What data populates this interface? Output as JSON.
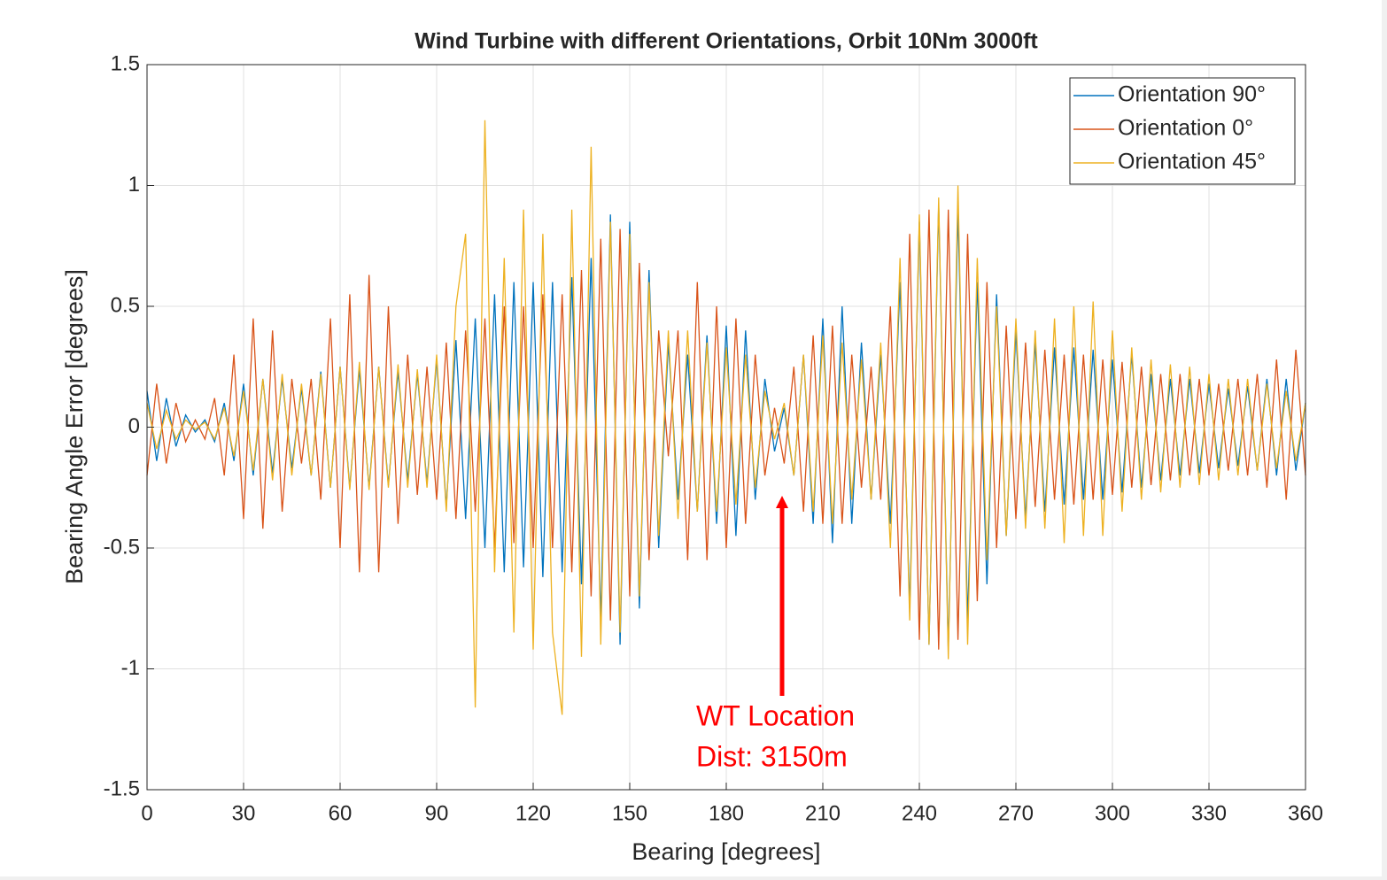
{
  "chart_data": {
    "type": "line",
    "title": "Wind Turbine with different Orientations, Orbit 10Nm 3000ft",
    "xlabel": "Bearing [degrees]",
    "ylabel": "Bearing Angle Error [degrees]",
    "x": [
      0,
      3,
      6,
      9,
      12,
      15,
      18,
      21,
      24,
      27,
      30,
      33,
      36,
      39,
      42,
      45,
      48,
      51,
      54,
      57,
      60,
      63,
      66,
      69,
      72,
      75,
      78,
      81,
      84,
      87,
      90,
      93,
      96,
      99,
      102,
      105,
      108,
      111,
      114,
      117,
      120,
      123,
      126,
      129,
      132,
      135,
      138,
      141,
      144,
      147,
      150,
      153,
      156,
      159,
      162,
      165,
      168,
      171,
      174,
      177,
      180,
      183,
      186,
      189,
      192,
      195,
      198,
      201,
      204,
      207,
      210,
      213,
      216,
      219,
      222,
      225,
      228,
      231,
      234,
      237,
      240,
      243,
      246,
      249,
      252,
      255,
      258,
      261,
      264,
      267,
      270,
      273,
      276,
      279,
      282,
      285,
      288,
      291,
      294,
      297,
      300,
      303,
      306,
      309,
      312,
      315,
      318,
      321,
      324,
      327,
      330,
      333,
      336,
      339,
      342,
      345,
      348,
      351,
      354,
      357,
      360
    ],
    "series": [
      {
        "name": "Orientation 90°",
        "color": "#0072bd",
        "values": [
          0.15,
          -0.14,
          0.12,
          -0.08,
          0.05,
          -0.02,
          0.03,
          -0.06,
          0.1,
          -0.14,
          0.18,
          -0.2,
          0.2,
          -0.19,
          0.2,
          -0.17,
          0.16,
          -0.2,
          0.23,
          -0.25,
          0.25,
          -0.25,
          0.24,
          -0.25,
          0.25,
          -0.24,
          0.23,
          -0.22,
          0.22,
          -0.23,
          0.28,
          -0.33,
          0.36,
          -0.38,
          0.45,
          -0.5,
          0.55,
          -0.6,
          0.6,
          -0.58,
          0.6,
          -0.62,
          0.6,
          -0.6,
          0.62,
          -0.65,
          0.7,
          -0.8,
          0.88,
          -0.9,
          0.85,
          -0.75,
          0.65,
          -0.5,
          0.35,
          -0.3,
          0.3,
          -0.35,
          0.38,
          -0.4,
          0.42,
          -0.45,
          0.4,
          -0.3,
          0.2,
          -0.1,
          0.08,
          -0.2,
          0.3,
          -0.4,
          0.45,
          -0.48,
          0.5,
          -0.4,
          0.35,
          -0.3,
          0.3,
          -0.4,
          0.6,
          -0.75,
          0.85,
          -0.9,
          0.92,
          -0.92,
          0.9,
          -0.8,
          0.6,
          -0.65,
          0.55,
          -0.45,
          0.4,
          -0.38,
          0.35,
          -0.35,
          0.33,
          -0.32,
          0.33,
          -0.3,
          0.32,
          -0.3,
          0.28,
          -0.27,
          0.3,
          -0.25,
          0.22,
          -0.22,
          0.2,
          -0.2,
          0.2,
          -0.19,
          0.18,
          -0.17,
          0.16,
          -0.16,
          0.17,
          -0.18,
          0.2,
          -0.2,
          0.2,
          -0.18,
          0.1
        ]
      },
      {
        "name": "Orientation 0°",
        "color": "#d95319",
        "values": [
          -0.2,
          0.18,
          -0.15,
          0.1,
          -0.06,
          0.03,
          -0.05,
          0.12,
          -0.2,
          0.3,
          -0.38,
          0.45,
          -0.42,
          0.4,
          -0.35,
          0.2,
          -0.15,
          0.2,
          -0.3,
          0.45,
          -0.5,
          0.55,
          -0.6,
          0.63,
          -0.6,
          0.5,
          -0.4,
          0.3,
          -0.28,
          0.25,
          -0.3,
          0.35,
          -0.38,
          0.4,
          -0.35,
          0.45,
          -0.5,
          0.5,
          -0.48,
          0.5,
          -0.5,
          0.55,
          -0.5,
          0.55,
          -0.6,
          0.65,
          -0.7,
          0.78,
          -0.8,
          0.82,
          -0.7,
          0.68,
          -0.55,
          0.4,
          -0.12,
          0.4,
          -0.55,
          0.6,
          -0.55,
          0.5,
          -0.5,
          0.45,
          -0.4,
          0.3,
          -0.2,
          0.08,
          -0.15,
          0.25,
          -0.35,
          0.38,
          -0.4,
          0.42,
          -0.4,
          0.3,
          -0.25,
          0.25,
          -0.3,
          0.5,
          -0.7,
          0.8,
          -0.88,
          0.9,
          -0.92,
          0.9,
          -0.88,
          0.8,
          -0.72,
          0.6,
          -0.5,
          0.42,
          -0.38,
          0.35,
          -0.33,
          0.32,
          -0.3,
          0.3,
          -0.32,
          0.3,
          -0.3,
          0.28,
          -0.28,
          0.27,
          -0.25,
          0.25,
          -0.24,
          0.22,
          -0.22,
          0.22,
          -0.2,
          0.2,
          -0.2,
          0.18,
          -0.18,
          0.2,
          -0.2,
          0.22,
          -0.25,
          0.28,
          -0.3,
          0.32,
          -0.2
        ]
      },
      {
        "name": "Orientation 45°",
        "color": "#edb120",
        "values": [
          0.1,
          -0.09,
          0.07,
          -0.05,
          0.03,
          -0.01,
          0.02,
          -0.05,
          0.08,
          -0.12,
          0.15,
          -0.18,
          0.2,
          -0.22,
          0.22,
          -0.2,
          0.18,
          -0.2,
          0.22,
          -0.25,
          0.25,
          -0.26,
          0.27,
          -0.26,
          0.25,
          -0.25,
          0.26,
          -0.25,
          0.24,
          -0.25,
          0.3,
          -0.35,
          0.5,
          0.8,
          -1.16,
          1.27,
          -0.6,
          0.7,
          -0.85,
          0.9,
          -0.92,
          0.8,
          -0.85,
          -1.19,
          0.9,
          -0.95,
          1.16,
          -0.9,
          0.85,
          -0.85,
          0.8,
          -0.7,
          0.6,
          -0.45,
          0.4,
          -0.38,
          0.4,
          -0.35,
          0.35,
          -0.35,
          0.33,
          -0.32,
          0.3,
          -0.25,
          0.15,
          -0.05,
          0.1,
          -0.2,
          0.3,
          -0.35,
          0.38,
          -0.4,
          0.35,
          -0.3,
          0.28,
          -0.3,
          0.35,
          -0.5,
          0.7,
          -0.8,
          0.88,
          -0.9,
          0.95,
          -0.96,
          1.0,
          -0.9,
          0.7,
          -0.55,
          0.5,
          -0.45,
          0.45,
          -0.42,
          0.4,
          -0.42,
          0.45,
          -0.48,
          0.5,
          -0.45,
          0.52,
          -0.45,
          0.4,
          -0.35,
          0.33,
          -0.3,
          0.28,
          -0.27,
          0.26,
          -0.25,
          0.25,
          -0.24,
          0.22,
          -0.22,
          0.2,
          -0.2,
          0.2,
          -0.18,
          0.18,
          -0.17,
          0.15,
          -0.14,
          0.1
        ]
      }
    ],
    "xlim": [
      0,
      360
    ],
    "xticks": [
      0,
      30,
      60,
      90,
      120,
      150,
      180,
      210,
      240,
      270,
      300,
      330,
      360
    ],
    "ylim": [
      -1.5,
      1.5
    ],
    "yticks": [
      -1.5,
      -1,
      -0.5,
      0,
      0.5,
      1,
      1.5
    ],
    "grid": true,
    "legend": "northeast",
    "annotation": {
      "lines": [
        "WT Location",
        "Dist: 3150m"
      ],
      "color": "#ff0000"
    }
  }
}
